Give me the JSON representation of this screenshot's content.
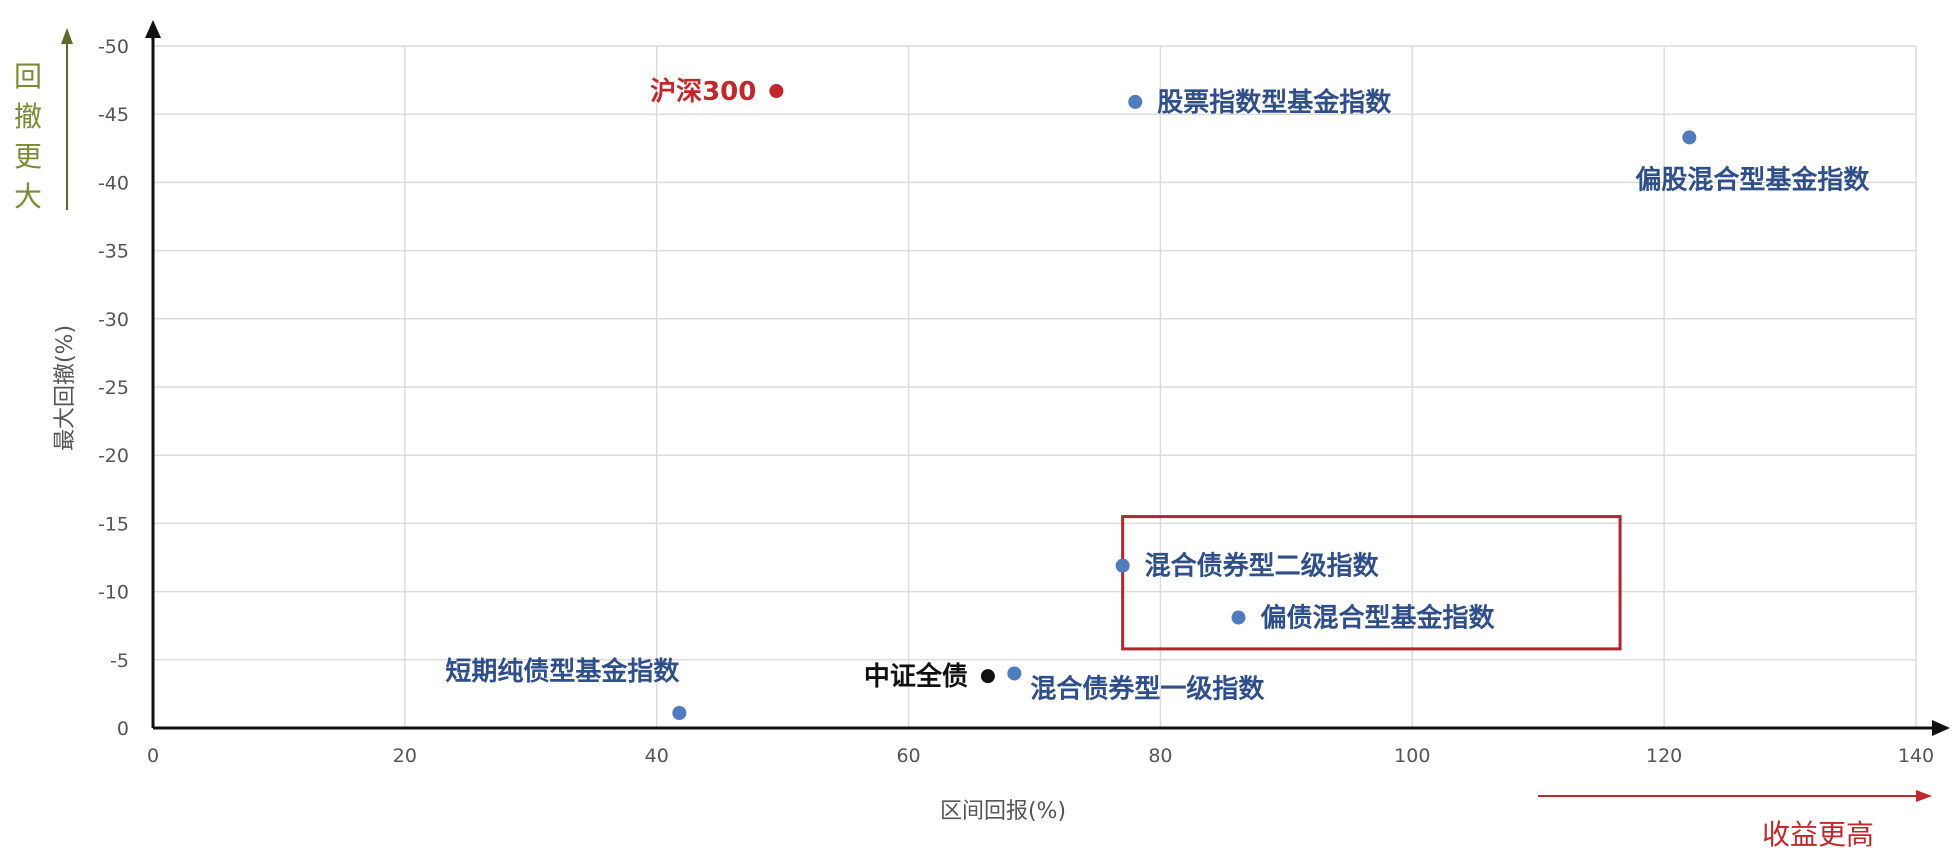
{
  "chart_data": {
    "type": "scatter",
    "xlabel": "区间回报(%)",
    "ylabel": "最大回撤(%)",
    "xlim": [
      0,
      140
    ],
    "ylim": [
      0,
      -50
    ],
    "x_ticks": [
      0,
      20,
      40,
      60,
      80,
      100,
      120,
      140
    ],
    "y_ticks": [
      0,
      -5,
      -10,
      -15,
      -20,
      -25,
      -30,
      -35,
      -40,
      -45,
      -50
    ],
    "grid": true,
    "points": [
      {
        "label": "沪深300",
        "x": 49.5,
        "y": -46.7,
        "color": "#c0282c",
        "label_color": "#c0282c",
        "label_side": "left"
      },
      {
        "label": "股票指数型基金指数",
        "x": 78,
        "y": -45.9,
        "color": "#4f7bbf",
        "label_color": "#2f4f8a",
        "label_side": "right"
      },
      {
        "label": "偏股混合型基金指数",
        "x": 122,
        "y": -43.3,
        "color": "#4f7bbf",
        "label_color": "#2f4f8a",
        "label_side": "below-left"
      },
      {
        "label": "混合债券型二级指数",
        "x": 77,
        "y": -11.9,
        "color": "#4f7bbf",
        "label_color": "#2f4f8a",
        "label_side": "right"
      },
      {
        "label": "偏债混合型基金指数",
        "x": 86.2,
        "y": -8.1,
        "color": "#4f7bbf",
        "label_color": "#2f4f8a",
        "label_side": "right"
      },
      {
        "label": "中证全债",
        "x": 66.3,
        "y": -3.8,
        "color": "#111111",
        "label_color": "#111111",
        "label_side": "left"
      },
      {
        "label": "混合债券型一级指数",
        "x": 68.4,
        "y": -4.0,
        "color": "#4f7bbf",
        "label_color": "#2f4f8a",
        "label_side": "below-right"
      },
      {
        "label": "短期纯债型基金指数",
        "x": 41.8,
        "y": -1.1,
        "color": "#4f7bbf",
        "label_color": "#2f4f8a",
        "label_side": "above-left"
      }
    ],
    "highlight_box": {
      "x_range": [
        77,
        116.5
      ],
      "y_range": [
        -15.5,
        -5.8
      ],
      "color": "#b3262b"
    },
    "annotations": {
      "y_direction": "回撤更大",
      "x_direction": "收益更高"
    }
  }
}
